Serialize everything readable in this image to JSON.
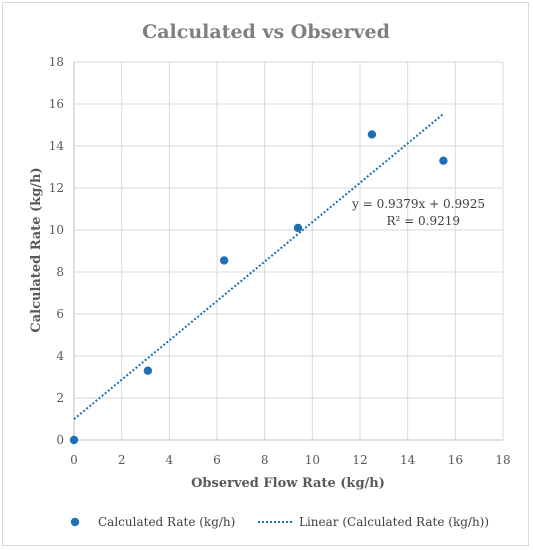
{
  "colors": {
    "series": "#1f6fb5",
    "grid": "#d9d9d9",
    "text": "#595959",
    "title": "#7f7f7f"
  },
  "chart_data": {
    "type": "scatter",
    "title": "Calculated vs Observed",
    "xlabel": "Observed Flow Rate (kg/h)",
    "ylabel": "Calculated Rate (kg/h)",
    "xlim": [
      0,
      18
    ],
    "ylim": [
      0,
      18
    ],
    "xticks": [
      0,
      2,
      4,
      6,
      8,
      10,
      12,
      14,
      16,
      18
    ],
    "yticks": [
      0,
      2,
      4,
      6,
      8,
      10,
      12,
      14,
      16,
      18
    ],
    "grid": "vertical and horizontal major gridlines",
    "series": [
      {
        "name": "Calculated Rate (kg/h)",
        "x": [
          0,
          3.1,
          6.3,
          9.4,
          12.5,
          15.5
        ],
        "y": [
          0,
          3.3,
          8.55,
          10.1,
          14.55,
          13.3
        ]
      }
    ],
    "trendline": {
      "name": "Linear (Calculated Rate (kg/h))",
      "slope": 0.9379,
      "intercept": 0.9925,
      "x_range": [
        0,
        15.5
      ],
      "equation": "y = 0.9379x + 0.9925",
      "r_squared": "R² = 0.9219"
    },
    "legend_position": "bottom"
  }
}
